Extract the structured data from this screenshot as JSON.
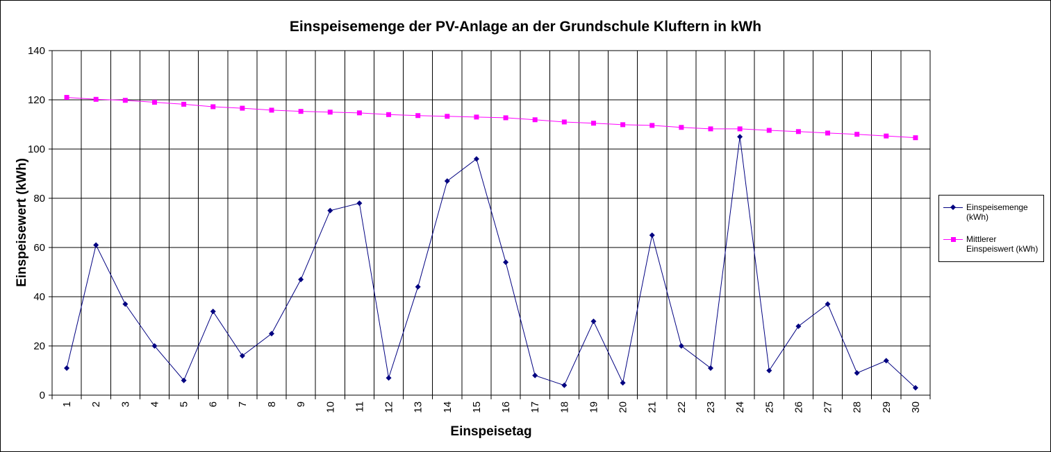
{
  "chart_data": {
    "type": "line",
    "title": "Einspeisemenge der PV-Anlage an der Grundschule Kluftern in kWh",
    "xlabel": "Einspeisetag",
    "ylabel": "Einspeisewert  (kWh)",
    "categories": [
      "1",
      "2",
      "3",
      "4",
      "5",
      "6",
      "7",
      "8",
      "9",
      "10",
      "11",
      "12",
      "13",
      "14",
      "15",
      "16",
      "17",
      "18",
      "19",
      "20",
      "21",
      "22",
      "23",
      "24",
      "25",
      "26",
      "27",
      "28",
      "29",
      "30"
    ],
    "ylim": [
      0,
      140
    ],
    "yticks": [
      "0",
      "20",
      "40",
      "60",
      "80",
      "100",
      "120",
      "140"
    ],
    "grid": true,
    "legend_position": "right",
    "series": [
      {
        "name": "Einspeisemenge (kWh)",
        "color": "#000080",
        "marker": "diamond",
        "values": [
          11,
          61,
          37,
          20,
          6,
          34,
          16,
          25,
          47,
          75,
          78,
          7,
          44,
          87,
          96,
          54,
          8,
          4,
          30,
          5,
          65,
          20,
          11,
          105,
          10,
          28,
          37,
          9,
          14,
          3
        ]
      },
      {
        "name": "Mittlerer Einspeiswert (kWh)",
        "color": "#ff00ff",
        "marker": "square",
        "values": [
          121,
          120.2,
          119.8,
          119,
          118.2,
          117.2,
          116.6,
          115.8,
          115.3,
          115,
          114.7,
          114,
          113.6,
          113.3,
          113,
          112.7,
          111.9,
          111,
          110.5,
          109.9,
          109.6,
          108.8,
          108.2,
          108.2,
          107.6,
          107.1,
          106.5,
          106,
          105.3,
          104.6
        ]
      }
    ]
  },
  "legend": {
    "items": [
      {
        "line1": "Einspeisemenge",
        "line2": "(kWh)"
      },
      {
        "line1": "Mittlerer",
        "line2": "Einspeiswert (kWh)"
      }
    ]
  }
}
